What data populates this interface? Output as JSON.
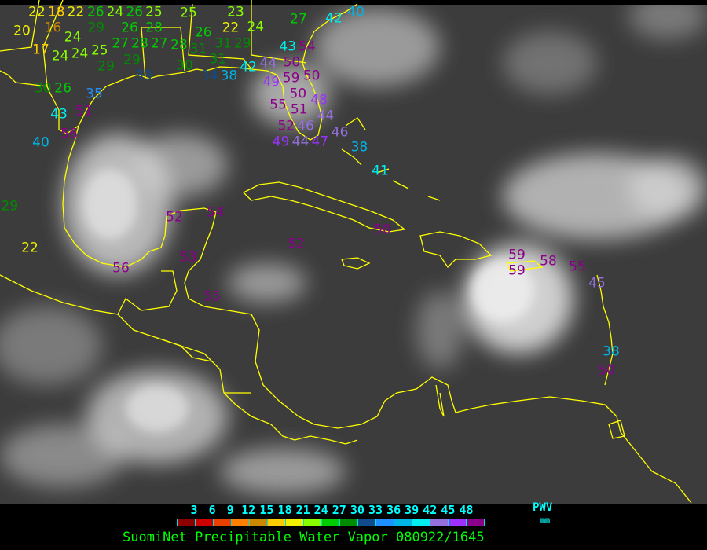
{
  "title": "SuomiNet Precipitable Water Vapor 080922/1645",
  "legend": {
    "ticks": [
      "3",
      "6",
      "9",
      "12",
      "15",
      "18",
      "21",
      "24",
      "27",
      "30",
      "33",
      "36",
      "39",
      "42",
      "45",
      "48"
    ],
    "unit_top": "PWV",
    "unit_bottom": "mm",
    "colors": [
      "#8c0000",
      "#cc0000",
      "#e84000",
      "#ff8000",
      "#cc8800",
      "#ffcc00",
      "#f0f000",
      "#88ff00",
      "#00cc00",
      "#008c00",
      "#104c8c",
      "#1e90ff",
      "#00b4e6",
      "#00eeee",
      "#9370db",
      "#9b30ff",
      "#8b008b"
    ]
  },
  "colors": {
    "coastline": "#ffff00",
    "background": "#3c3c3c"
  },
  "stations": [
    "22",
    "18",
    "22",
    "26",
    "24",
    "26",
    "25",
    "29",
    "26",
    "28",
    "25",
    "23",
    "22",
    "24",
    "29",
    "27",
    "42",
    "40",
    "20",
    "16",
    "24",
    "17",
    "24",
    "24",
    "25",
    "27",
    "29",
    "28",
    "27",
    "28",
    "26",
    "31",
    "31",
    "31",
    "29",
    "33",
    "30",
    "34",
    "38",
    "42",
    "44",
    "43",
    "54",
    "49",
    "50",
    "50",
    "50",
    "59",
    "51",
    "48",
    "55",
    "46",
    "44",
    "52",
    "49",
    "46",
    "44",
    "47",
    "30",
    "26",
    "35",
    "43",
    "51",
    "56",
    "40",
    "29",
    "22",
    "52",
    "54",
    "56",
    "53",
    "52",
    "50",
    "55",
    "38",
    "41",
    "59",
    "59",
    "58",
    "55",
    "45",
    "38",
    "50"
  ]
}
